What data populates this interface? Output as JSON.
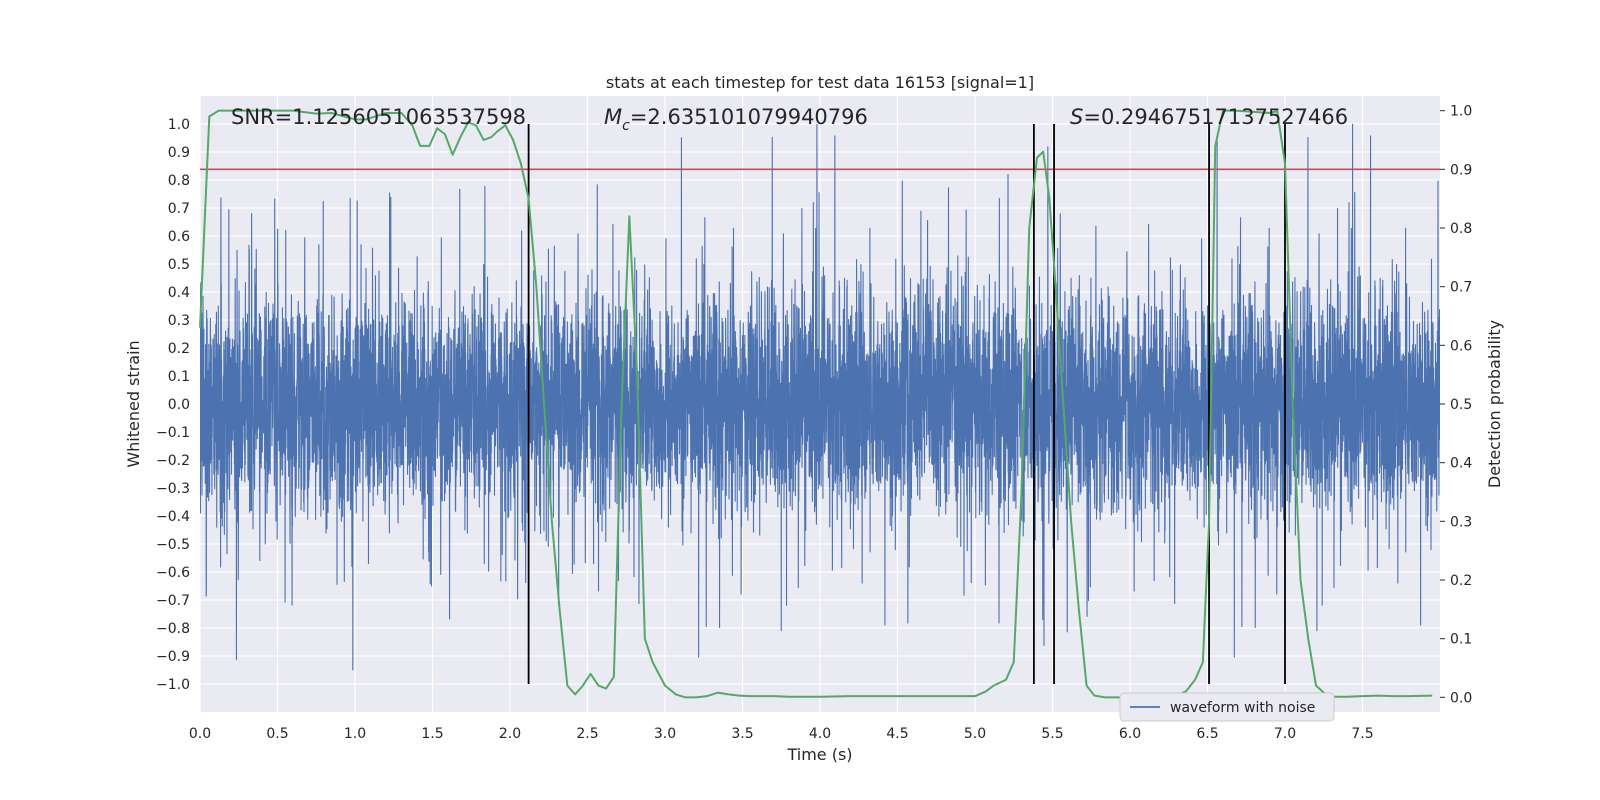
{
  "chart_data": {
    "type": "line",
    "title": "stats at each timestep for test data 16153 [signal=1]",
    "xlabel": "Time (s)",
    "ylabel": "Whitened strain",
    "y2label": "Detection probability",
    "xlim": [
      0.0,
      8.0
    ],
    "ylim": [
      -1.1,
      1.1
    ],
    "y2lim": [
      -0.025,
      1.025
    ],
    "xticks": [
      0.0,
      0.5,
      1.0,
      1.5,
      2.0,
      2.5,
      3.0,
      3.5,
      4.0,
      4.5,
      5.0,
      5.5,
      6.0,
      6.5,
      7.0,
      7.5
    ],
    "xtick_labels": [
      "0.0",
      "0.5",
      "1.0",
      "1.5",
      "2.0",
      "2.5",
      "3.0",
      "3.5",
      "4.0",
      "4.5",
      "5.0",
      "5.5",
      "6.0",
      "6.5",
      "7.0",
      "7.5"
    ],
    "yticks": [
      -1.0,
      -0.9,
      -0.8,
      -0.7,
      -0.6,
      -0.5,
      -0.4,
      -0.3,
      -0.2,
      -0.1,
      0.0,
      0.1,
      0.2,
      0.3,
      0.4,
      0.5,
      0.6,
      0.7,
      0.8,
      0.9,
      1.0
    ],
    "ytick_labels": [
      "−1.0",
      "−0.9",
      "−0.8",
      "−0.7",
      "−0.6",
      "−0.5",
      "−0.4",
      "−0.3",
      "−0.2",
      "−0.1",
      "0.0",
      "0.1",
      "0.2",
      "0.3",
      "0.4",
      "0.5",
      "0.6",
      "0.7",
      "0.8",
      "0.9",
      "1.0"
    ],
    "y2ticks": [
      0.0,
      0.1,
      0.2,
      0.3,
      0.4,
      0.5,
      0.6,
      0.7,
      0.8,
      0.9,
      1.0
    ],
    "y2tick_labels": [
      "0.0",
      "0.1",
      "0.2",
      "0.3",
      "0.4",
      "0.5",
      "0.6",
      "0.7",
      "0.8",
      "0.9",
      "1.0"
    ],
    "annotations": {
      "snr": "SNR=1.1256051063537598",
      "mc_symbol": "M",
      "mc_sub": "c",
      "mc_value": "=2.635101079940796",
      "s_symbol": "S",
      "s_value": "=0.29467517137527466"
    },
    "threshold": 0.9,
    "event_lines_x": [
      2.12,
      5.38,
      5.51,
      6.51,
      7.0
    ],
    "legend": {
      "label": "waveform with noise",
      "position": "lower-right"
    },
    "waveform": {
      "name": "waveform with noise",
      "duration_s": 8.0,
      "typical_range": [
        -0.6,
        0.6
      ],
      "peak_max": 1.0,
      "peak_min": -1.0
    },
    "detection_probability": {
      "name": "detection probability",
      "x": [
        0.0,
        0.06,
        0.12,
        0.2,
        0.4,
        0.6,
        0.75,
        0.85,
        1.0,
        1.07,
        1.2,
        1.3,
        1.37,
        1.42,
        1.48,
        1.53,
        1.58,
        1.63,
        1.68,
        1.73,
        1.78,
        1.83,
        1.88,
        1.92,
        1.97,
        2.02,
        2.07,
        2.12,
        2.17,
        2.22,
        2.27,
        2.32,
        2.37,
        2.42,
        2.47,
        2.52,
        2.57,
        2.62,
        2.67,
        2.72,
        2.77,
        2.82,
        2.87,
        2.92,
        3.0,
        3.07,
        3.13,
        3.2,
        3.27,
        3.34,
        3.41,
        3.48,
        3.55,
        3.62,
        3.7,
        3.8,
        4.0,
        4.2,
        4.3,
        4.4,
        4.6,
        4.8,
        5.0,
        5.07,
        5.12,
        5.2,
        5.25,
        5.3,
        5.35,
        5.4,
        5.44,
        5.48,
        5.52,
        5.57,
        5.62,
        5.67,
        5.72,
        5.77,
        5.84,
        5.9,
        6.0,
        6.2,
        6.3,
        6.36,
        6.42,
        6.47,
        6.51,
        6.55,
        6.6,
        6.68,
        6.8,
        6.9,
        6.95,
        7.0,
        7.05,
        7.1,
        7.15,
        7.2,
        7.28,
        7.4,
        7.5,
        7.6,
        7.7,
        7.8,
        7.95
      ],
      "values": [
        0.63,
        0.99,
        1.0,
        1.0,
        1.0,
        1.0,
        0.995,
        0.996,
        0.985,
        0.985,
        0.996,
        0.996,
        0.975,
        0.94,
        0.94,
        0.97,
        0.96,
        0.925,
        0.955,
        0.98,
        0.975,
        0.95,
        0.955,
        0.965,
        0.975,
        0.95,
        0.91,
        0.85,
        0.7,
        0.5,
        0.3,
        0.15,
        0.02,
        0.005,
        0.02,
        0.04,
        0.02,
        0.015,
        0.035,
        0.5,
        0.82,
        0.55,
        0.1,
        0.06,
        0.02,
        0.005,
        0.0,
        0.0,
        0.002,
        0.008,
        0.005,
        0.003,
        0.002,
        0.002,
        0.002,
        0.001,
        0.001,
        0.002,
        0.002,
        0.002,
        0.002,
        0.002,
        0.002,
        0.01,
        0.02,
        0.03,
        0.06,
        0.35,
        0.8,
        0.92,
        0.93,
        0.85,
        0.7,
        0.5,
        0.3,
        0.15,
        0.02,
        0.003,
        0.0,
        0.0,
        0.0,
        0.002,
        0.003,
        0.01,
        0.03,
        0.06,
        0.3,
        0.94,
        1.0,
        1.0,
        0.998,
        0.996,
        0.999,
        0.91,
        0.5,
        0.2,
        0.1,
        0.02,
        0.001,
        0.001,
        0.002,
        0.003,
        0.002,
        0.002,
        0.003
      ]
    },
    "colors": {
      "waveform": "#4c72b0",
      "probability": "#55a868",
      "threshold": "#c44e52",
      "event_line": "#000000",
      "plot_bg": "#eaeaf2",
      "grid": "#ffffff"
    }
  }
}
